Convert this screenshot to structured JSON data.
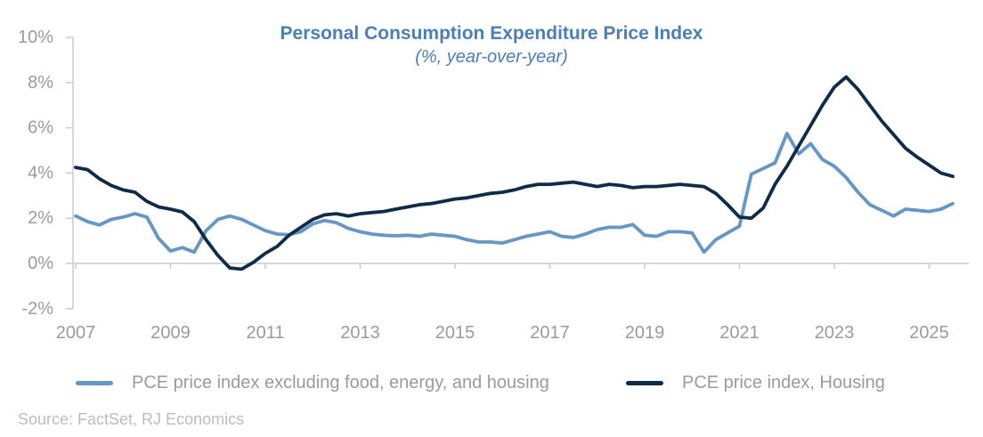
{
  "chart_data": {
    "type": "line",
    "title": "Personal Consumption Expenditure Price Index",
    "subtitle": "(%, year-over-year)",
    "xlabel": "",
    "ylabel": "%, year-over-year",
    "legend_position": "bottom",
    "grid": "baseline at 0% only",
    "axis_color": "#cccccc",
    "tick_label_color": "#9b9b9b",
    "x_axis": {
      "min": 2007,
      "max": 2025.7,
      "tick_years": [
        2007,
        2009,
        2011,
        2013,
        2015,
        2017,
        2019,
        2021,
        2023,
        2025
      ]
    },
    "y_axis": {
      "min": -2,
      "max": 10,
      "ticks": [
        10,
        8,
        6,
        4,
        2,
        0,
        -2
      ],
      "tick_labels": [
        "10%",
        "8%",
        "6%",
        "4%",
        "2%",
        "0%",
        "-2%"
      ]
    },
    "x": [
      2007,
      2007.25,
      2007.5,
      2007.75,
      2008,
      2008.25,
      2008.5,
      2008.75,
      2009,
      2009.25,
      2009.5,
      2009.75,
      2010,
      2010.25,
      2010.5,
      2010.75,
      2011,
      2011.25,
      2011.5,
      2011.75,
      2012,
      2012.25,
      2012.5,
      2012.75,
      2013,
      2013.25,
      2013.5,
      2013.75,
      2014,
      2014.25,
      2014.5,
      2014.75,
      2015,
      2015.25,
      2015.5,
      2015.75,
      2016,
      2016.25,
      2016.5,
      2016.75,
      2017,
      2017.25,
      2017.5,
      2017.75,
      2018,
      2018.25,
      2018.5,
      2018.75,
      2019,
      2019.25,
      2019.5,
      2019.75,
      2020,
      2020.25,
      2020.5,
      2020.75,
      2021,
      2021.25,
      2021.5,
      2021.75,
      2022,
      2022.25,
      2022.5,
      2022.75,
      2023,
      2023.25,
      2023.5,
      2023.75,
      2024,
      2024.25,
      2024.5,
      2024.75,
      2025,
      2025.25,
      2025.5
    ],
    "series": [
      {
        "name": "PCE price index excluding food, energy, and housing",
        "color": "#6496c8",
        "values": [
          2.1,
          1.85,
          1.7,
          1.95,
          2.05,
          2.2,
          2.05,
          1.1,
          0.55,
          0.7,
          0.5,
          1.45,
          1.95,
          2.1,
          1.95,
          1.7,
          1.45,
          1.3,
          1.27,
          1.4,
          1.75,
          1.9,
          1.8,
          1.55,
          1.4,
          1.3,
          1.25,
          1.22,
          1.25,
          1.2,
          1.3,
          1.25,
          1.2,
          1.05,
          0.95,
          0.95,
          0.9,
          1.05,
          1.2,
          1.3,
          1.4,
          1.2,
          1.15,
          1.3,
          1.5,
          1.6,
          1.6,
          1.72,
          1.25,
          1.2,
          1.4,
          1.4,
          1.35,
          0.5,
          1.05,
          1.35,
          1.65,
          3.95,
          4.2,
          4.45,
          5.75,
          4.85,
          5.3,
          4.6,
          4.3,
          3.8,
          3.15,
          2.6,
          2.35,
          2.1,
          2.4,
          2.35,
          2.3,
          2.4,
          2.65
        ]
      },
      {
        "name": "PCE price index, Housing",
        "color": "#0f2b49",
        "values": [
          4.25,
          4.15,
          3.75,
          3.45,
          3.25,
          3.15,
          2.75,
          2.5,
          2.4,
          2.28,
          1.85,
          1.05,
          0.35,
          -0.2,
          -0.25,
          0.05,
          0.45,
          0.75,
          1.25,
          1.6,
          1.95,
          2.15,
          2.2,
          2.1,
          2.2,
          2.25,
          2.3,
          2.4,
          2.5,
          2.6,
          2.65,
          2.75,
          2.85,
          2.9,
          3.0,
          3.1,
          3.15,
          3.25,
          3.4,
          3.5,
          3.5,
          3.55,
          3.6,
          3.5,
          3.4,
          3.5,
          3.45,
          3.35,
          3.4,
          3.4,
          3.45,
          3.5,
          3.45,
          3.4,
          3.1,
          2.6,
          2.05,
          2.0,
          2.45,
          3.5,
          4.3,
          5.2,
          6.1,
          7.0,
          7.8,
          8.25,
          7.7,
          7.0,
          6.3,
          5.7,
          5.1,
          4.7,
          4.35,
          4.0,
          3.85
        ]
      }
    ]
  },
  "source": {
    "text": "Source: FactSet, RJ Economics"
  }
}
